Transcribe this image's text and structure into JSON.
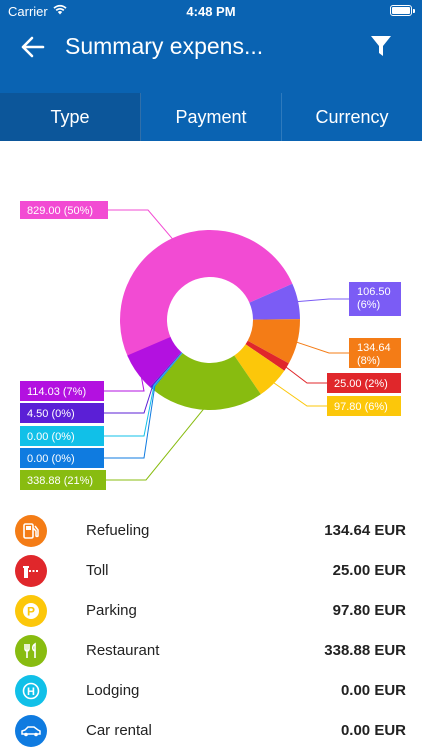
{
  "status_bar": {
    "carrier": "Carrier",
    "time": "4:48 PM"
  },
  "nav": {
    "title": "Summary expens...",
    "back_icon": "arrow-left-icon",
    "filter_icon": "filter-icon"
  },
  "tabs": [
    {
      "label": "Type",
      "active": true
    },
    {
      "label": "Payment",
      "active": false
    },
    {
      "label": "Currency",
      "active": false
    }
  ],
  "chart_data": {
    "type": "pie",
    "donut": true,
    "slices": [
      {
        "label": "829.00 (50%)",
        "value": 829.0,
        "color": "#f24bd3"
      },
      {
        "label": "106.50 (6%)",
        "value": 106.5,
        "color": "#7b5cf5"
      },
      {
        "label": "134.64 (8%)",
        "value": 134.64,
        "color": "#f47c16"
      },
      {
        "label": "25.00 (2%)",
        "value": 25.0,
        "color": "#e0272b"
      },
      {
        "label": "97.80 (6%)",
        "value": 97.8,
        "color": "#fcc70a"
      },
      {
        "label": "338.88 (21%)",
        "value": 338.88,
        "color": "#88bc10"
      },
      {
        "label": "0.00 (0%)",
        "value": 0.0,
        "color": "#0f7be0"
      },
      {
        "label": "0.00 (0%)",
        "value": 0.0,
        "color": "#11c0e8"
      },
      {
        "label": "4.50 (0%)",
        "value": 4.5,
        "color": "#5b1fd6"
      },
      {
        "label": "114.03 (7%)",
        "value": 114.03,
        "color": "#b311e0"
      }
    ]
  },
  "categories": [
    {
      "name": "Refueling",
      "amount": "134.64 EUR",
      "color": "#f47c16",
      "icon": "fuel-pump-icon"
    },
    {
      "name": "Toll",
      "amount": "25.00 EUR",
      "color": "#e0272b",
      "icon": "toll-barrier-icon"
    },
    {
      "name": "Parking",
      "amount": "97.80 EUR",
      "color": "#fcc70a",
      "icon": "parking-icon",
      "glyph": "P"
    },
    {
      "name": "Restaurant",
      "amount": "338.88 EUR",
      "color": "#88bc10",
      "icon": "fork-knife-icon"
    },
    {
      "name": "Lodging",
      "amount": "0.00 EUR",
      "color": "#11c0e8",
      "icon": "hotel-icon",
      "glyph": "H"
    },
    {
      "name": "Car rental",
      "amount": "0.00 EUR",
      "color": "#0f7be0",
      "icon": "car-icon"
    }
  ]
}
